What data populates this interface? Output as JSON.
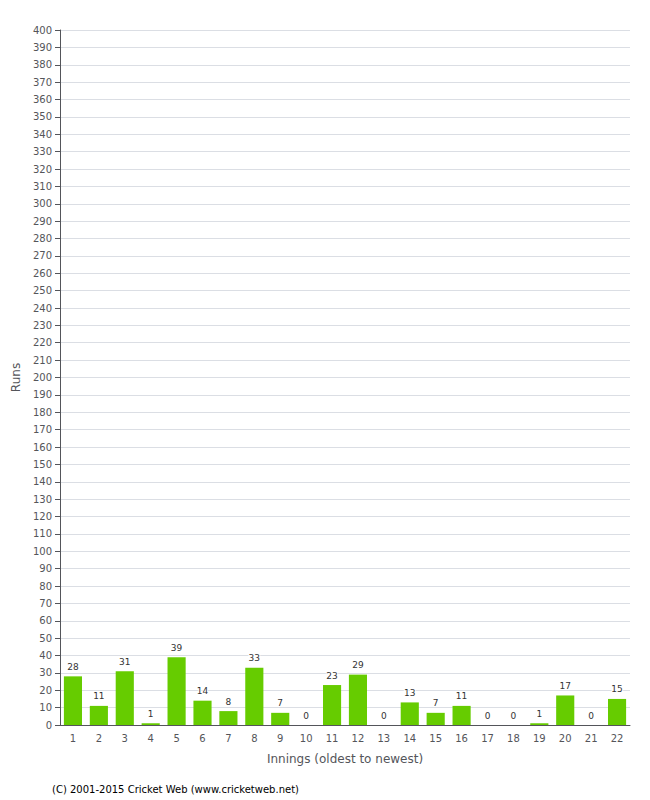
{
  "chart_data": {
    "type": "bar",
    "xlabel": "Innings (oldest to newest)",
    "ylabel": "Runs",
    "categories": [
      "1",
      "2",
      "3",
      "4",
      "5",
      "6",
      "7",
      "8",
      "9",
      "10",
      "11",
      "12",
      "13",
      "14",
      "15",
      "16",
      "17",
      "18",
      "19",
      "20",
      "21",
      "22"
    ],
    "values": [
      28,
      11,
      31,
      1,
      39,
      14,
      8,
      33,
      7,
      0,
      23,
      29,
      0,
      13,
      7,
      11,
      0,
      0,
      1,
      17,
      0,
      15
    ],
    "color": "#66CC00",
    "ylim": [
      0,
      400
    ],
    "yticks": [
      0,
      10,
      20,
      30,
      40,
      50,
      60,
      70,
      80,
      90,
      100,
      110,
      120,
      130,
      140,
      150,
      160,
      170,
      180,
      190,
      200,
      210,
      220,
      230,
      240,
      250,
      260,
      270,
      280,
      290,
      300,
      310,
      320,
      330,
      340,
      350,
      360,
      370,
      380,
      390,
      400
    ],
    "grid": true,
    "data_labels": true,
    "annotations": [
      "(C) 2001-2015 Cricket Web (www.cricketweb.net)"
    ]
  }
}
